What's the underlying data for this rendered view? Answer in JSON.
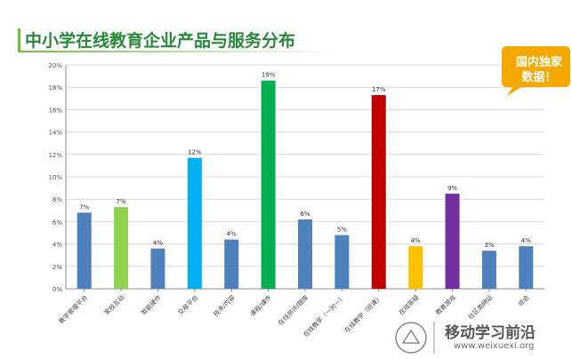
{
  "title": "中小学在线教育企业产品与服务分布",
  "bubble": {
    "line1": "国内独家",
    "line2": "数据！"
  },
  "watermark": {
    "text": "移动学习前沿",
    "url": "www.weixuexi.org"
  },
  "colors": {
    "title": "#27883a",
    "bubble": "#f5a800"
  },
  "chart_data": {
    "type": "bar",
    "categories": [
      "教学管理平台",
      "家校互动",
      "智能硬件",
      "交易平台",
      "技术/内容",
      "课程/课件",
      "在线测评/题库",
      "在线教学（一对一）",
      "在线教学（班课）",
      "在线答疑",
      "教育游戏",
      "社区类网站",
      "综合"
    ],
    "values": [
      7,
      7,
      4,
      12,
      4,
      19,
      6,
      5,
      17,
      4,
      9,
      3,
      4
    ],
    "value_labels": [
      "7%",
      "7%",
      "4%",
      "12%",
      "4%",
      "19%",
      "6%",
      "5%",
      "17%",
      "4%",
      "9%",
      "3%",
      "4%"
    ],
    "bar_values": [
      6.8,
      7.3,
      3.6,
      11.7,
      4.4,
      18.6,
      6.2,
      4.8,
      17.3,
      3.8,
      8.5,
      3.4,
      3.8
    ],
    "colors": [
      "#4f81bd",
      "#92d050",
      "#4f81bd",
      "#00b0f0",
      "#4f81bd",
      "#00b050",
      "#4f81bd",
      "#4f81bd",
      "#c00000",
      "#ffc000",
      "#7030a0",
      "#4f81bd",
      "#4f81bd"
    ],
    "yticks": [
      "0%",
      "2%",
      "4%",
      "6%",
      "8%",
      "10%",
      "12%",
      "14%",
      "16%",
      "18%",
      "20%"
    ],
    "ylim": [
      0,
      20
    ],
    "grid": true
  }
}
